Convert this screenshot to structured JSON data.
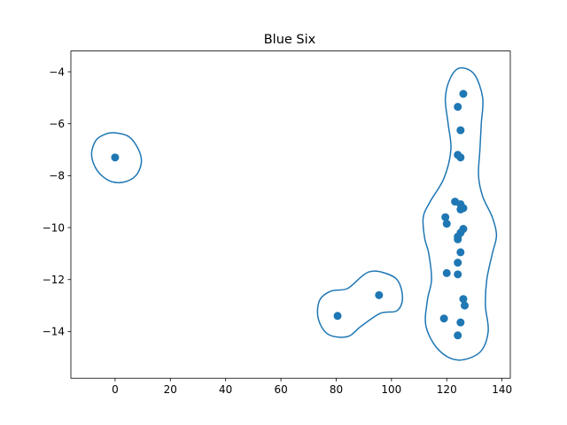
{
  "chart_data": {
    "type": "scatter",
    "title": "Blue Six",
    "xlabel": "",
    "ylabel": "",
    "xlim": [
      -16,
      143
    ],
    "ylim": [
      -15.8,
      -3.2
    ],
    "x_ticks": [
      0,
      20,
      40,
      60,
      80,
      100,
      120,
      140
    ],
    "y_ticks": [
      -14,
      -12,
      -10,
      -8,
      -6,
      -4
    ],
    "grid": false,
    "color": "#1f77b4",
    "points": [
      {
        "x": 0,
        "y": -7.3
      },
      {
        "x": 80.5,
        "y": -13.4
      },
      {
        "x": 95.5,
        "y": -12.6
      },
      {
        "x": 126,
        "y": -4.85
      },
      {
        "x": 124,
        "y": -5.35
      },
      {
        "x": 125,
        "y": -6.25
      },
      {
        "x": 124,
        "y": -7.2
      },
      {
        "x": 125,
        "y": -7.3
      },
      {
        "x": 123,
        "y": -9.0
      },
      {
        "x": 125,
        "y": -9.1
      },
      {
        "x": 126,
        "y": -9.25
      },
      {
        "x": 125,
        "y": -9.3
      },
      {
        "x": 119.5,
        "y": -9.6
      },
      {
        "x": 120,
        "y": -9.85
      },
      {
        "x": 126,
        "y": -10.05
      },
      {
        "x": 125,
        "y": -10.2
      },
      {
        "x": 124,
        "y": -10.35
      },
      {
        "x": 124,
        "y": -10.45
      },
      {
        "x": 125,
        "y": -10.95
      },
      {
        "x": 124,
        "y": -11.35
      },
      {
        "x": 120,
        "y": -11.75
      },
      {
        "x": 124,
        "y": -11.8
      },
      {
        "x": 126,
        "y": -12.75
      },
      {
        "x": 126.5,
        "y": -13.0
      },
      {
        "x": 119,
        "y": -13.5
      },
      {
        "x": 125,
        "y": -13.65
      },
      {
        "x": 124,
        "y": -14.15
      }
    ],
    "contours": [
      [
        [
          0,
          -6.35
        ],
        [
          5,
          -6.5
        ],
        [
          8.5,
          -7.0
        ],
        [
          9.5,
          -7.5
        ],
        [
          7.5,
          -8.0
        ],
        [
          3.0,
          -8.25
        ],
        [
          -2.0,
          -8.2
        ],
        [
          -6.5,
          -7.8
        ],
        [
          -8.5,
          -7.2
        ],
        [
          -7.0,
          -6.65
        ],
        [
          -3.5,
          -6.4
        ]
      ],
      [
        [
          96,
          -11.7
        ],
        [
          102,
          -12.0
        ],
        [
          104,
          -12.7
        ],
        [
          102,
          -13.2
        ],
        [
          96,
          -13.3
        ],
        [
          89,
          -13.8
        ],
        [
          84,
          -14.2
        ],
        [
          77,
          -14.1
        ],
        [
          73.5,
          -13.5
        ],
        [
          74,
          -12.8
        ],
        [
          78,
          -12.45
        ],
        [
          84,
          -12.35
        ],
        [
          89,
          -11.9
        ],
        [
          92,
          -11.7
        ]
      ],
      [
        [
          125,
          -3.85
        ],
        [
          130,
          -4.1
        ],
        [
          133,
          -5.0
        ],
        [
          132.5,
          -6.0
        ],
        [
          132,
          -7.0
        ],
        [
          131.5,
          -8.0
        ],
        [
          133,
          -8.8
        ],
        [
          136.5,
          -9.6
        ],
        [
          138,
          -10.3
        ],
        [
          136.5,
          -11.0
        ],
        [
          134.5,
          -12.0
        ],
        [
          134,
          -13.0
        ],
        [
          135,
          -14.0
        ],
        [
          132,
          -14.8
        ],
        [
          124,
          -15.1
        ],
        [
          117,
          -14.7
        ],
        [
          112.5,
          -13.8
        ],
        [
          113,
          -12.8
        ],
        [
          114.5,
          -12.0
        ],
        [
          113.5,
          -11.0
        ],
        [
          112,
          -10.4
        ],
        [
          111.5,
          -9.6
        ],
        [
          114,
          -9.0
        ],
        [
          119,
          -8.1
        ],
        [
          121.5,
          -7.0
        ],
        [
          120.5,
          -6.0
        ],
        [
          119.5,
          -5.0
        ],
        [
          121.5,
          -4.2
        ]
      ]
    ]
  }
}
